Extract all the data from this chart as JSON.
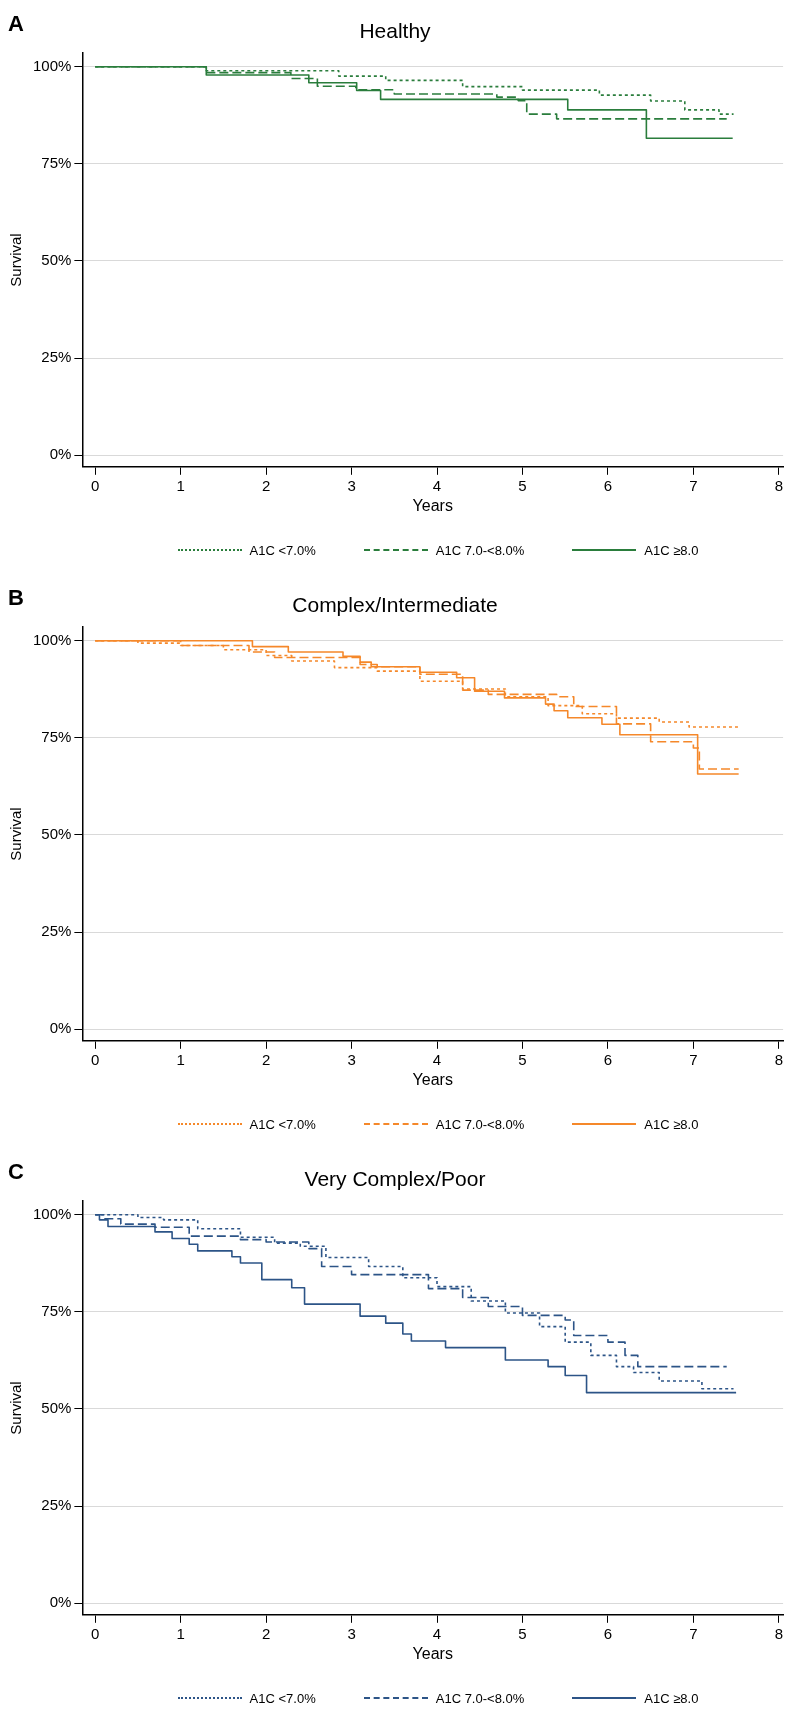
{
  "chart_data": [
    {
      "type": "step",
      "title": "Healthy",
      "xlabel": "Years",
      "ylabel": "Survival",
      "annotations": [
        "A"
      ],
      "xlim": [
        -0.15,
        8.05
      ],
      "xticks": [
        0,
        1,
        2,
        3,
        4,
        5,
        6,
        7,
        8
      ],
      "ylim": [
        -3,
        103.5
      ],
      "yticks": [
        {
          "value": 0,
          "label": "0%"
        },
        {
          "value": 25,
          "label": "25%"
        },
        {
          "value": 50,
          "label": "50%"
        },
        {
          "value": 75,
          "label": "75%"
        },
        {
          "value": 100,
          "label": "100%"
        }
      ],
      "grid": "y",
      "legend": "bottom",
      "marker": "none",
      "series": [
        {
          "name": "A1C <7.0%",
          "color": "#2a7d3c",
          "line_style": "dotted",
          "x": [
            0,
            1.3,
            2.85,
            3.4,
            4.3,
            5.0,
            5.9,
            6.5,
            6.9,
            7.3,
            7.47
          ],
          "values": [
            100,
            99,
            97.6,
            96.5,
            94.9,
            94,
            92.7,
            91.2,
            88.9,
            87.8,
            87.8
          ]
        },
        {
          "name": "A1C 7.0-<8.0%",
          "color": "#2a7d3c",
          "line_style": "dashed",
          "x": [
            0,
            1.3,
            2.29,
            2.6,
            3.05,
            3.5,
            4.7,
            4.95,
            5.05,
            5.4,
            7.39
          ],
          "values": [
            100,
            98.5,
            97,
            95,
            94.1,
            93,
            92.2,
            91.3,
            87.8,
            86.6,
            86.6
          ]
        },
        {
          "name": "A1C ≥8.0",
          "color": "#2a7d3c",
          "line_style": "solid",
          "x": [
            0,
            1.3,
            2.5,
            3.06,
            3.34,
            5.53,
            6.45,
            7.46
          ],
          "values": [
            100,
            97.9,
            95.9,
            93.9,
            91.6,
            88.9,
            81.6,
            81.6
          ]
        }
      ]
    },
    {
      "type": "step",
      "title": "Complex/Intermediate",
      "xlabel": "Years",
      "ylabel": "Survival",
      "annotations": [
        "B"
      ],
      "xlim": [
        -0.15,
        8.05
      ],
      "xticks": [
        0,
        1,
        2,
        3,
        4,
        5,
        6,
        7,
        8
      ],
      "ylim": [
        -3,
        103.5
      ],
      "yticks": [
        {
          "value": 0,
          "label": "0%"
        },
        {
          "value": 25,
          "label": "25%"
        },
        {
          "value": 50,
          "label": "50%"
        },
        {
          "value": 75,
          "label": "75%"
        },
        {
          "value": 100,
          "label": "100%"
        }
      ],
      "grid": "y",
      "legend": "bottom",
      "marker": "none",
      "series": [
        {
          "name": "A1C <7.0%",
          "color": "#f5882a",
          "line_style": "dotted",
          "x": [
            0,
            0.5,
            1.0,
            1.5,
            2.0,
            2.3,
            2.8,
            3.3,
            3.8,
            4.3,
            4.8,
            5.3,
            5.7,
            6.1,
            6.6,
            6.95,
            7.53
          ],
          "values": [
            100,
            99.4,
            98.8,
            97.7,
            96.2,
            94.8,
            93.1,
            92.2,
            89.6,
            87.6,
            85.6,
            83.3,
            81.2,
            80.1,
            79.1,
            77.8,
            77.8
          ]
        },
        {
          "name": "A1C 7.0-<8.0%",
          "color": "#f5882a",
          "line_style": "dashed",
          "x": [
            0,
            1.0,
            1.8,
            2.1,
            3.1,
            3.3,
            3.8,
            4.3,
            4.6,
            5.4,
            5.6,
            6.1,
            6.5,
            7.0,
            7.07,
            7.53
          ],
          "values": [
            100,
            98.8,
            97.1,
            95.7,
            93.9,
            93.3,
            91.4,
            87.3,
            86.2,
            85.6,
            83.1,
            78.6,
            74,
            72.4,
            67,
            67
          ]
        },
        {
          "name": "A1C ≥8.0",
          "color": "#f5882a",
          "line_style": "solid",
          "x": [
            0,
            1.84,
            2.26,
            2.9,
            3.1,
            3.23,
            3.8,
            4.23,
            4.44,
            4.79,
            5.27,
            5.37,
            5.53,
            5.93,
            6.14,
            7.05,
            7.53
          ],
          "values": [
            100,
            98.5,
            97.1,
            96,
            94.5,
            93.3,
            91.9,
            90.5,
            87,
            85.3,
            83.7,
            82,
            80.2,
            78.5,
            75.8,
            65.7,
            65.7
          ]
        }
      ]
    },
    {
      "type": "step",
      "title": "Very Complex/Poor",
      "xlabel": "Years",
      "ylabel": "Survival",
      "annotations": [
        "C"
      ],
      "xlim": [
        -0.15,
        8.05
      ],
      "xticks": [
        0,
        1,
        2,
        3,
        4,
        5,
        6,
        7,
        8
      ],
      "ylim": [
        -3,
        103.5
      ],
      "yticks": [
        {
          "value": 0,
          "label": "0%"
        },
        {
          "value": 25,
          "label": "25%"
        },
        {
          "value": 50,
          "label": "50%"
        },
        {
          "value": 75,
          "label": "75%"
        },
        {
          "value": 100,
          "label": "100%"
        }
      ],
      "grid": "y",
      "legend": "bottom",
      "marker": "none",
      "series": [
        {
          "name": "A1C <7.0%",
          "color": "#2c5487",
          "line_style": "dotted",
          "x": [
            0,
            0.5,
            0.8,
            1.2,
            1.7,
            2.1,
            2.4,
            2.7,
            3.2,
            3.6,
            4.0,
            4.4,
            4.8,
            5.2,
            5.5,
            5.8,
            6.1,
            6.3,
            6.6,
            7.1,
            7.47
          ],
          "values": [
            100,
            99.3,
            98.7,
            96.4,
            94.2,
            92.7,
            91.9,
            89,
            86.7,
            83.8,
            81.5,
            77.8,
            74.7,
            71.2,
            67.2,
            63.8,
            60.9,
            59.4,
            57.2,
            55.2,
            55.2
          ]
        },
        {
          "name": "A1C 7.0-<8.0%",
          "color": "#2c5487",
          "line_style": "dashed",
          "x": [
            0,
            0.1,
            0.3,
            0.7,
            1.1,
            1.7,
            2.0,
            2.5,
            2.65,
            3.0,
            3.9,
            4.3,
            4.6,
            5.0,
            5.5,
            5.6,
            6.0,
            6.2,
            6.35,
            7.39
          ],
          "values": [
            100,
            99,
            97.6,
            96.8,
            94.5,
            93.6,
            93,
            91.3,
            86.7,
            84.6,
            81,
            78.7,
            76.4,
            74.1,
            72.9,
            68.9,
            67.2,
            63.8,
            60.9,
            60.9
          ]
        },
        {
          "name": "A1C ≥8.0",
          "color": "#2c5487",
          "line_style": "solid",
          "x": [
            0,
            0.05,
            0.15,
            0.7,
            0.9,
            1.1,
            1.2,
            1.6,
            1.7,
            1.95,
            2.3,
            2.45,
            3.1,
            3.4,
            3.6,
            3.7,
            4.1,
            4.8,
            5.3,
            5.5,
            5.75,
            7.5
          ],
          "values": [
            100,
            98.7,
            97,
            95.6,
            93.9,
            92.4,
            90.7,
            89.2,
            87.6,
            83.3,
            81.2,
            77,
            73.9,
            72.1,
            69.3,
            67.5,
            65.8,
            62.6,
            60.9,
            58.6,
            54.2,
            54.2
          ]
        }
      ]
    }
  ]
}
